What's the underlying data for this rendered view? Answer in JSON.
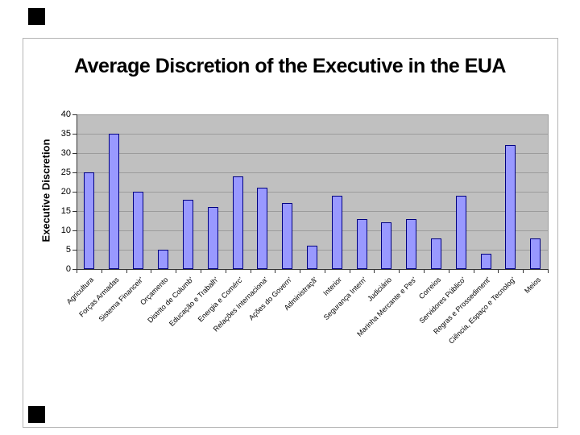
{
  "slide": {
    "background": "#FFFFFF",
    "frame_color": "#B4B4B4",
    "decoration_square_color": "#000000"
  },
  "chart_data": {
    "type": "bar",
    "title": "Average Discretion of the Executive in the EUA",
    "ylabel": "Executive Discretion",
    "xlabel": "",
    "ylim": [
      0,
      40
    ],
    "ytick_step": 5,
    "ytick_labels": [
      "0",
      "5",
      "10",
      "15",
      "20",
      "25",
      "30",
      "35",
      "40"
    ],
    "grid": true,
    "legend": false,
    "plot_bg": "#C0C0C0",
    "grid_color": "#9C9C9C",
    "bar_fill": "#9999FF",
    "bar_border": "#000080",
    "categories": [
      "Agricultura",
      "Forças Armadas",
      "Sistema Financeir'",
      "Orçamento",
      "Distrito de Columb'",
      "Educação e Trabalh'",
      "Energia e Comérc'",
      "Relações Internaciona'",
      "Ações do Govern'",
      "Administraçã'",
      "Interior",
      "Segurança Intern'",
      "Judiciário",
      "Marinha Mercante e Pes'",
      "Correios",
      "Servidores Público'",
      "Regras e Prossediment'",
      "Ciência, Espaço e Tecnolog'",
      "Meios"
    ],
    "values": [
      25,
      35,
      20,
      5,
      18,
      16,
      24,
      21,
      17,
      6,
      19,
      13,
      12,
      13,
      8,
      19,
      4,
      32,
      8
    ]
  }
}
